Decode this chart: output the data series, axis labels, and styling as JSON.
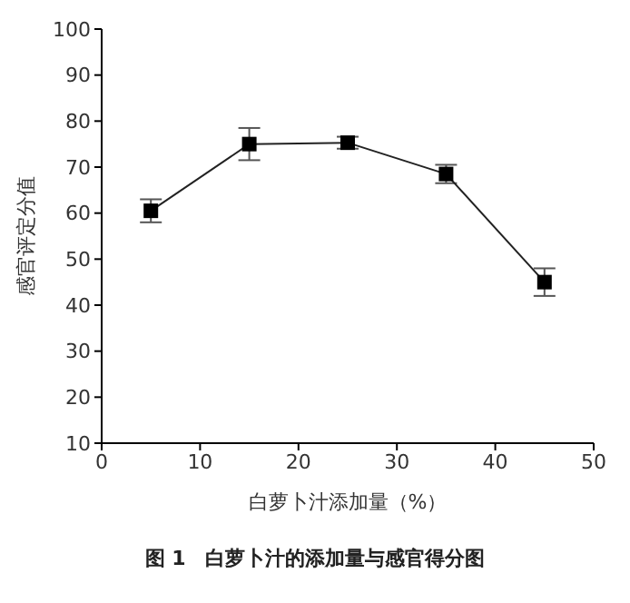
{
  "chart_data": {
    "type": "line",
    "xlabel": "白萝卜汁添加量（%）",
    "ylabel": "感官评定分值",
    "x": [
      5,
      15,
      25,
      35,
      45
    ],
    "series": [
      {
        "color": "#222222",
        "values": [
          60.5,
          75,
          75.3,
          68.5,
          45
        ],
        "errors": [
          2.5,
          3.5,
          1.3,
          2,
          3
        ]
      }
    ],
    "xlim": [
      0,
      50
    ],
    "xticks": [
      0,
      10,
      20,
      30,
      40,
      50
    ],
    "ylim": [
      10,
      100
    ],
    "yticks": [
      10,
      20,
      30,
      40,
      50,
      60,
      70,
      80,
      90,
      100
    ],
    "grid": false,
    "legend": false,
    "marker": "square",
    "line_style": "solid",
    "annotations": [
      "图 1　白萝卜汁的添加量与感官得分图"
    ]
  }
}
